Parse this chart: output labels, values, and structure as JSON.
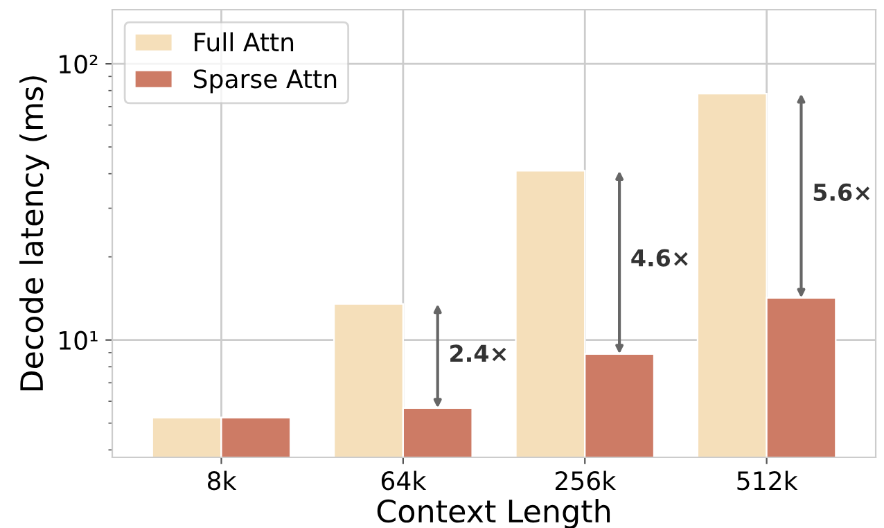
{
  "chart_data": {
    "type": "bar",
    "xlabel": "Context Length",
    "ylabel": "Decode latency (ms)",
    "categories": [
      "8k",
      "64k",
      "256k",
      "512k"
    ],
    "series": [
      {
        "name": "Full Attn",
        "color": "#f5dfba",
        "values": [
          5.24,
          13.5,
          41,
          78
        ]
      },
      {
        "name": "Sparse Attn",
        "color": "#cd7b65",
        "values": [
          5.24,
          5.67,
          8.9,
          14.2
        ]
      }
    ],
    "log": "y",
    "ylim": [
      3.76,
      157
    ],
    "yticks": [
      {
        "value": 10,
        "label": "10¹"
      },
      {
        "value": 100,
        "label": "10²"
      }
    ],
    "grid": true,
    "legend": "top left",
    "annotations": [
      {
        "text": "2.4×",
        "x": "64k",
        "y": 8.8
      },
      {
        "text": "4.6×",
        "x": "256k",
        "y": 19.5
      },
      {
        "text": "5.6×",
        "x": "512k",
        "y": 33.7
      }
    ]
  }
}
